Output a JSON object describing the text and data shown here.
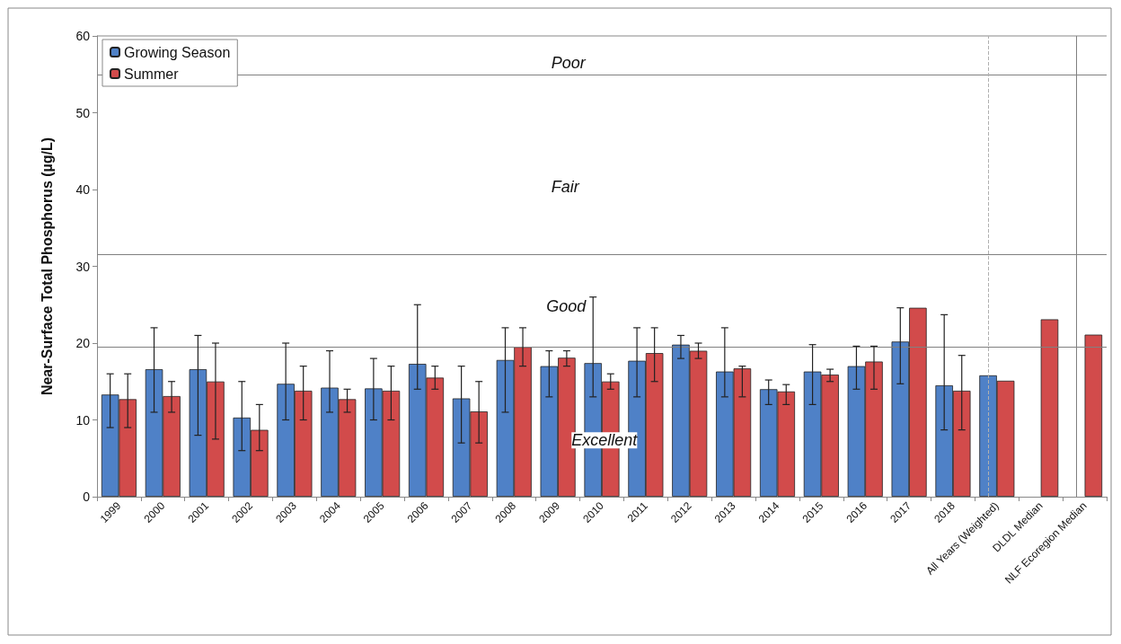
{
  "chart_data": {
    "type": "bar",
    "ylabel": "Near-Surface Total Phosphorus (µg/L)",
    "categories": [
      "1999",
      "2000",
      "2001",
      "2002",
      "2003",
      "2004",
      "2005",
      "2006",
      "2007",
      "2008",
      "2009",
      "2010",
      "2011",
      "2012",
      "2013",
      "2014",
      "2015",
      "2016",
      "2017",
      "2018",
      "All Years (Weighted)",
      "DLDL Median",
      "NLF Ecoregion Median"
    ],
    "series": [
      {
        "name": "Growing Season",
        "color": "#4f81c7",
        "values": [
          13.3,
          16.6,
          16.6,
          10.3,
          14.7,
          14.2,
          14.1,
          17.3,
          12.8,
          17.8,
          17,
          17.4,
          17.7,
          19.8,
          16.3,
          14,
          16.3,
          17,
          20.2,
          14.5,
          15.8,
          null,
          null
        ],
        "errors": [
          [
            9,
            16
          ],
          [
            11,
            22
          ],
          [
            8,
            21
          ],
          [
            6,
            15
          ],
          [
            10,
            20
          ],
          [
            11,
            19
          ],
          [
            10,
            18
          ],
          [
            14,
            25
          ],
          [
            7,
            17
          ],
          [
            11,
            22
          ],
          [
            13,
            19
          ],
          [
            13,
            26
          ],
          [
            13,
            22
          ],
          [
            18,
            21
          ],
          [
            13,
            22
          ],
          [
            12,
            15.2
          ],
          [
            12,
            19.8
          ],
          [
            14,
            19.6
          ],
          [
            14.7,
            24.6
          ],
          [
            8.7,
            23.7
          ],
          null,
          null,
          null
        ]
      },
      {
        "name": "Summer",
        "color": "#d24b4b",
        "values": [
          12.7,
          13.1,
          15,
          8.7,
          13.8,
          12.7,
          13.8,
          15.5,
          11.1,
          19.5,
          18.1,
          15,
          18.7,
          19,
          16.7,
          13.7,
          15.9,
          17.6,
          24.6,
          13.8,
          15.1,
          23.1,
          21.1
        ],
        "errors": [
          [
            9,
            16
          ],
          [
            11,
            15
          ],
          [
            7.5,
            20
          ],
          [
            6,
            12
          ],
          [
            10,
            17
          ],
          [
            11,
            14
          ],
          [
            10,
            17
          ],
          [
            14,
            17
          ],
          [
            7,
            15
          ],
          [
            17,
            22
          ],
          [
            17,
            19
          ],
          [
            14,
            16
          ],
          [
            15,
            22
          ],
          [
            18,
            20
          ],
          [
            13,
            17
          ],
          [
            12,
            14.6
          ],
          [
            15,
            16.6
          ],
          [
            14,
            19.6
          ],
          null,
          [
            8.7,
            18.4
          ],
          null,
          null,
          null
        ]
      }
    ],
    "ylim": [
      0,
      60
    ],
    "yticks": [
      0,
      10,
      20,
      30,
      40,
      50,
      60
    ],
    "grid": false,
    "legend": "top left",
    "ref_lines": [
      {
        "axis": "y",
        "value": 55,
        "color": "#808080"
      },
      {
        "axis": "y",
        "value": 31.6,
        "color": "#808080"
      },
      {
        "axis": "y",
        "value": 19.5,
        "color": "#808080"
      },
      {
        "axis": "x",
        "value": "All Years (Weighted)",
        "color": "#b0b0b0",
        "line_style": "dashed"
      },
      {
        "axis": "x",
        "value": "NLF Ecoregion Median",
        "color": "#808080",
        "line_style": "solid"
      }
    ],
    "annotations": [
      "Poor",
      "Fair",
      "Good",
      "Excellent"
    ]
  }
}
